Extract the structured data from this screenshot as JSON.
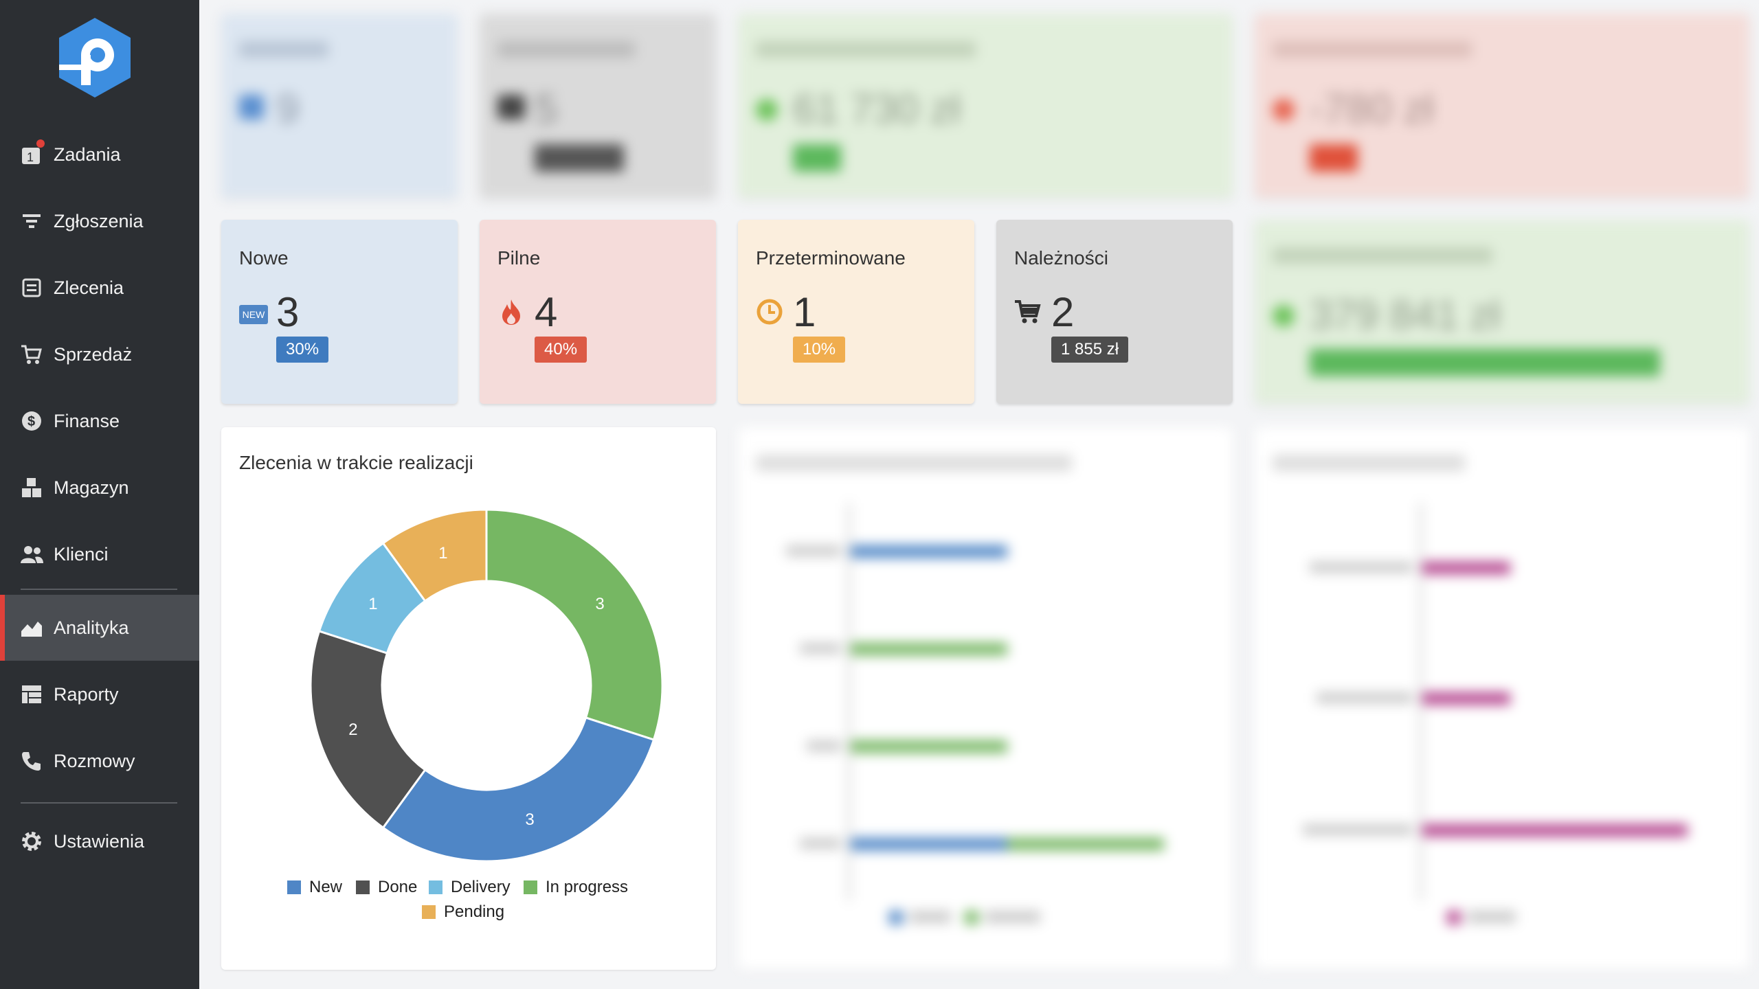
{
  "sidebar": {
    "items": [
      {
        "label": "Zadania",
        "icon": "tasks-icon"
      },
      {
        "label": "Zgłoszenia",
        "icon": "filter-icon"
      },
      {
        "label": "Zlecenia",
        "icon": "orders-icon"
      },
      {
        "label": "Sprzedaż",
        "icon": "cart-icon"
      },
      {
        "label": "Finanse",
        "icon": "dollar-icon"
      },
      {
        "label": "Magazyn",
        "icon": "boxes-icon"
      },
      {
        "label": "Klienci",
        "icon": "users-icon"
      },
      {
        "label": "Analityka",
        "icon": "chart-icon"
      },
      {
        "label": "Raporty",
        "icon": "reports-icon"
      },
      {
        "label": "Rozmowy",
        "icon": "phone-icon"
      },
      {
        "label": "Ustawienia",
        "icon": "gear-icon"
      }
    ],
    "active": "Analityka"
  },
  "stats": {
    "nowe": {
      "title": "Nowe",
      "value": "3",
      "badge": "30%",
      "icon_text": "NEW"
    },
    "pilne": {
      "title": "Pilne",
      "value": "4",
      "badge": "40%"
    },
    "przeterminowane": {
      "title": "Przeterminowane",
      "value": "1",
      "badge": "10%"
    },
    "naleznosci": {
      "title": "Należności",
      "value": "2",
      "badge": "1 855 zł"
    }
  },
  "blurred": {
    "card1": {
      "value": "9"
    },
    "card2": {
      "value": "5"
    },
    "card3": {
      "value": "61 730 zł"
    },
    "card4": {
      "value": "-780 zł"
    },
    "card5": {
      "value": "379 841 zł"
    }
  },
  "colors": {
    "blue": "#4f86c6",
    "dark": "#505050",
    "lightblue": "#74bde0",
    "green": "#76b763",
    "orange": "#e8b058",
    "red": "#e0413a",
    "magenta": "#b5468f"
  },
  "donut_panel": {
    "title": "Zlecenia w trakcie realizacji"
  },
  "chart_data": {
    "type": "pie",
    "variant": "donut",
    "title": "Zlecenia w trakcie realizacji",
    "categories": [
      "In progress",
      "New",
      "Done",
      "Delivery",
      "Pending"
    ],
    "values": [
      3,
      3,
      2,
      1,
      1
    ],
    "colors": [
      "#76b763",
      "#4f86c6",
      "#505050",
      "#74bde0",
      "#e8b058"
    ],
    "legend": [
      "New",
      "Done",
      "Delivery",
      "In progress",
      "Pending"
    ],
    "legend_position": "bottom"
  }
}
